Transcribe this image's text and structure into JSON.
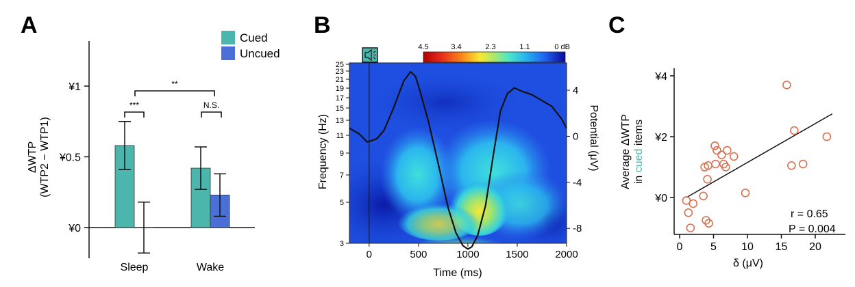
{
  "chart_data": [
    {
      "panel": "A",
      "type": "bar",
      "ylabel": [
        "ΔWTP",
        "(WTP2 − WTP1)"
      ],
      "yticks": [
        {
          "value": 0,
          "label": "¥0"
        },
        {
          "value": 0.5,
          "label": "¥0.5"
        },
        {
          "value": 1,
          "label": "¥1"
        }
      ],
      "ylim": [
        -0.2,
        1.3
      ],
      "categories": [
        "Sleep",
        "Wake"
      ],
      "series": [
        {
          "name": "Cued",
          "color": "#4db6ac",
          "values": [
            0.58,
            0.42
          ],
          "errors": [
            0.17,
            0.15
          ]
        },
        {
          "name": "Uncued",
          "color": "#4a6fd6",
          "values": [
            0.0,
            0.23
          ],
          "errors": [
            0.18,
            0.15
          ]
        }
      ],
      "significance": [
        {
          "label": "***",
          "between": "Sleep Cued vs Sleep Uncued"
        },
        {
          "label": "N.S.",
          "between": "Wake Cued vs Wake Uncued"
        },
        {
          "label": "**",
          "between": "Sleep Cued vs Wake Cued"
        }
      ],
      "legend": "top-right"
    },
    {
      "panel": "B",
      "type": "heatmap",
      "xlabel": "Time (ms)",
      "ylabel": "Frequency (Hz)",
      "y2label": "Potential (μV)",
      "xlim": [
        -200,
        2000
      ],
      "xticks": [
        0,
        500,
        1000,
        1500,
        2000
      ],
      "yticks": [
        3,
        5,
        7,
        9,
        11,
        13,
        15,
        17,
        19,
        21,
        23,
        25
      ],
      "y2lim": [
        -10,
        6
      ],
      "y2ticks": [
        -8,
        -4,
        0,
        4
      ],
      "colorbar": {
        "ticks": [
          "4.5",
          "3.4",
          "2.3",
          "1.1",
          "0 dB"
        ],
        "range": [
          4.5,
          0
        ]
      },
      "sound_onset_ms": 0,
      "erp_trace": {
        "x": [
          -200,
          -100,
          -20,
          20,
          80,
          150,
          250,
          350,
          420,
          470,
          520,
          600,
          700,
          800,
          880,
          950,
          1000,
          1040,
          1100,
          1180,
          1260,
          1330,
          1400,
          1470,
          1550,
          1650,
          1750,
          1850,
          1950,
          2000
        ],
        "y": [
          0.7,
          0.2,
          -0.5,
          -0.4,
          -0.2,
          0.5,
          2.5,
          4.8,
          5.6,
          5.2,
          3.8,
          1.3,
          -2.4,
          -6.2,
          -8.4,
          -9.5,
          -9.8,
          -9.6,
          -8.6,
          -6.0,
          -1.5,
          2.2,
          3.7,
          4.2,
          3.9,
          3.6,
          3.1,
          2.6,
          1.5,
          0.7
        ]
      }
    },
    {
      "panel": "C",
      "type": "scatter",
      "xlabel": "δ (μV)",
      "ylabel": [
        "Average ΔWTP",
        "in ",
        "cued",
        " items"
      ],
      "xlim": [
        -1.5,
        23.5
      ],
      "ylim": [
        -1.3,
        4.3
      ],
      "xticks": [
        0,
        5,
        10,
        15,
        20
      ],
      "yticks": [
        {
          "value": 0,
          "label": "¥0"
        },
        {
          "value": 2,
          "label": "¥2"
        },
        {
          "value": 4,
          "label": "¥4"
        }
      ],
      "x": [
        1.0,
        1.3,
        1.6,
        2.0,
        3.5,
        3.7,
        3.9,
        4.1,
        4.2,
        4.3,
        5.2,
        5.3,
        5.5,
        6.2,
        6.5,
        6.8,
        7.0,
        8.0,
        9.7,
        15.8,
        16.5,
        16.9,
        18.2,
        21.7
      ],
      "y": [
        -0.1,
        -0.5,
        -1.0,
        -0.2,
        0.05,
        1.0,
        -0.75,
        0.6,
        1.05,
        -0.85,
        1.7,
        1.1,
        1.55,
        1.4,
        1.1,
        1.0,
        1.55,
        1.35,
        0.15,
        3.7,
        1.05,
        2.2,
        1.1,
        2.0
      ],
      "regression": {
        "x": [
          1.0,
          22.5
        ],
        "y": [
          0.0,
          2.75
        ]
      },
      "annotations": [
        "r = 0.65",
        "P = 0.004"
      ],
      "point_color": "#d9704f",
      "cued_color": "#4db6ac"
    }
  ],
  "panels": {
    "a": "A",
    "b": "B",
    "c": "C"
  }
}
